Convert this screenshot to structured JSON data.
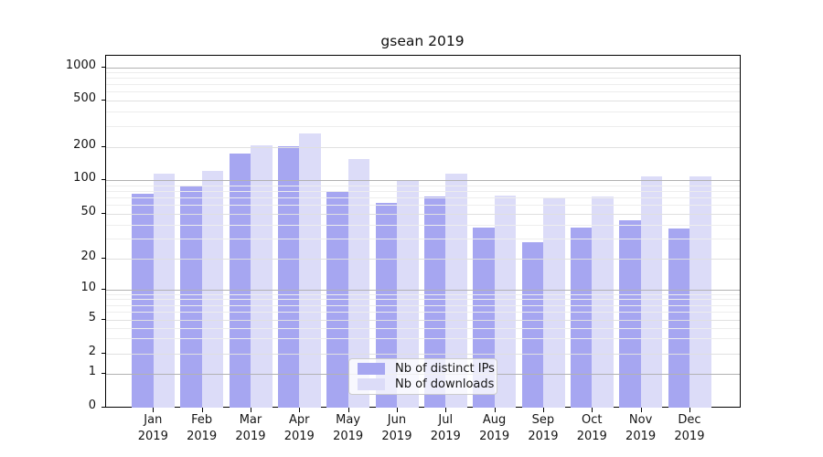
{
  "chart_data": {
    "type": "bar",
    "title": "gsean 2019",
    "categories": [
      "Jan",
      "Feb",
      "Mar",
      "Apr",
      "May",
      "Jun",
      "Jul",
      "Aug",
      "Sep",
      "Oct",
      "Nov",
      "Dec"
    ],
    "year": "2019",
    "series": [
      {
        "name": "Nb of distinct IPs",
        "color": "#a6a6f1",
        "values": [
          75,
          87,
          174,
          205,
          80,
          63,
          71,
          38,
          28,
          38,
          44,
          37
        ]
      },
      {
        "name": "Nb of downloads",
        "color": "#dcdcf8",
        "values": [
          115,
          122,
          208,
          260,
          157,
          100,
          115,
          73,
          70,
          72,
          109,
          107
        ]
      }
    ],
    "yscale": "symlog",
    "yticks": [
      0,
      1,
      2,
      5,
      10,
      20,
      50,
      100,
      200,
      500,
      1000
    ],
    "grid": true,
    "legend_position": "lower center",
    "colors": {
      "grid_major": "#b2b2b2",
      "grid_mid": "#e0e0e0",
      "grid_minor": "#ededed",
      "legend_border": "#cccccc"
    }
  }
}
